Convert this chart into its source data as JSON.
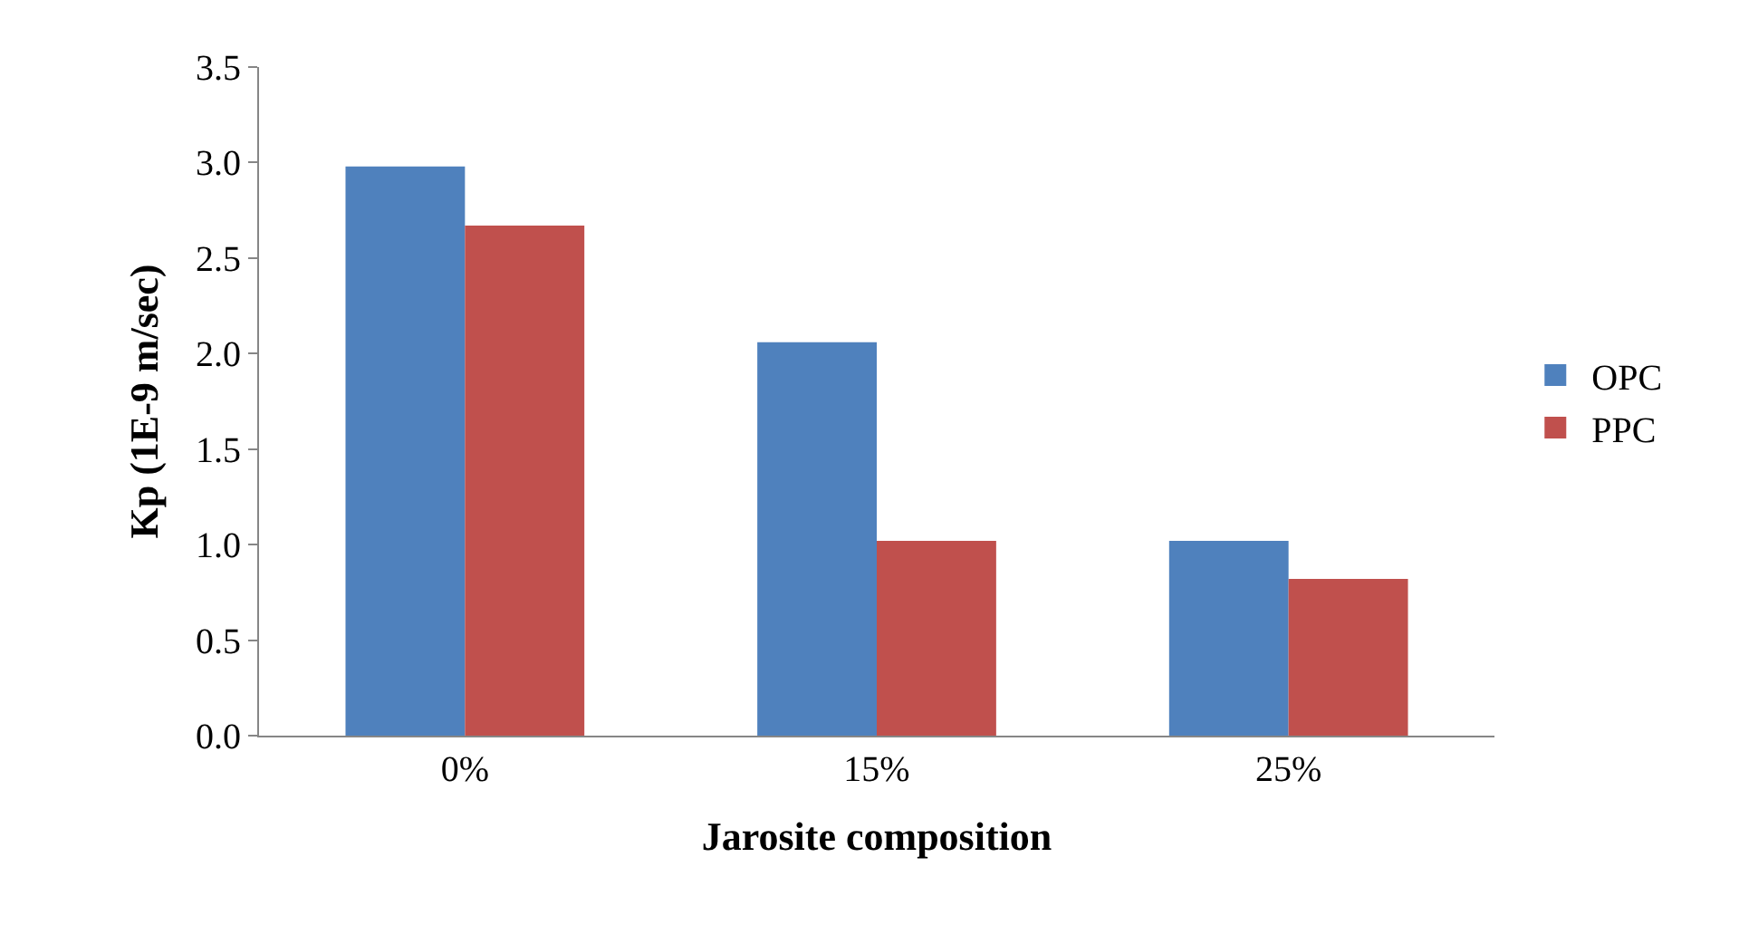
{
  "chart_data": {
    "type": "bar",
    "xlabel": "Jarosite composition",
    "ylabel": "Kp (1E-9 m/sec)",
    "categories": [
      "0%",
      "15%",
      "25%"
    ],
    "series": [
      {
        "name": "OPC",
        "color": "#4f81bd",
        "values": [
          2.98,
          2.06,
          1.02
        ]
      },
      {
        "name": "PPC",
        "color": "#c0504d",
        "values": [
          2.67,
          1.02,
          0.82
        ]
      }
    ],
    "ylim": [
      0,
      3.5
    ],
    "yticks": [
      {
        "value": 0,
        "label": "0.0"
      },
      {
        "value": 0.5,
        "label": "0.5"
      },
      {
        "value": 1,
        "label": "1.0"
      },
      {
        "value": 1.5,
        "label": "1.5"
      },
      {
        "value": 2,
        "label": "2.0"
      },
      {
        "value": 2.5,
        "label": "2.5"
      },
      {
        "value": 3,
        "label": "3.0"
      },
      {
        "value": 3.5,
        "label": "3.5"
      }
    ],
    "grid": false,
    "legend": "right"
  }
}
